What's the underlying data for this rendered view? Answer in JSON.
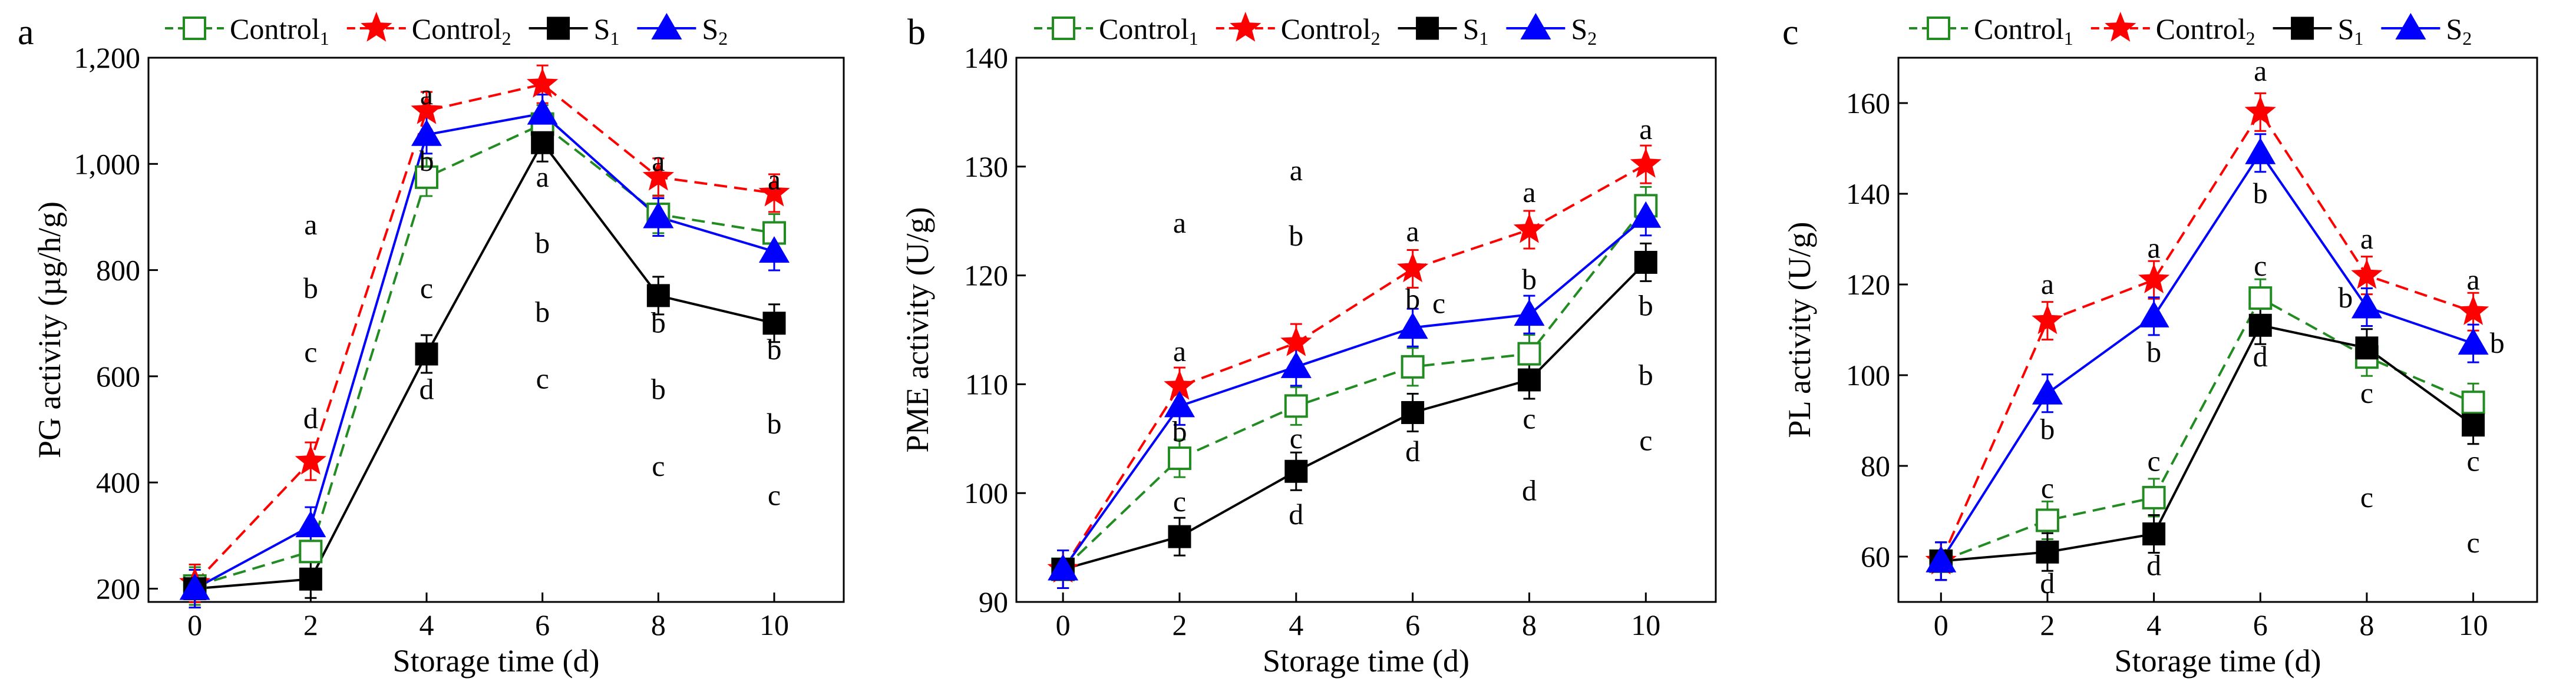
{
  "chart_data": [
    {
      "panel": "a",
      "type": "line",
      "ylabel": "PG activity (µg/h/g)",
      "xlabel": "Storage time (d)",
      "x": [
        0,
        2,
        4,
        6,
        8,
        10
      ],
      "xticks": [
        "0",
        "2",
        "4",
        "6",
        "8",
        "10"
      ],
      "ylim": [
        175,
        1200
      ],
      "yticks": [
        200,
        400,
        600,
        800,
        1000,
        1200
      ],
      "ytick_labels": [
        "200",
        "400",
        "600",
        "800",
        "1,000",
        "1,200"
      ],
      "series": [
        {
          "key": "c1",
          "name": "Control",
          "sub": "1",
          "values": [
            205,
            270,
            975,
            1075,
            905,
            870
          ]
        },
        {
          "key": "c2",
          "name": "Control",
          "sub": "2",
          "values": [
            210,
            440,
            1100,
            1150,
            975,
            945
          ]
        },
        {
          "key": "s1",
          "name": "S",
          "sub": "1",
          "values": [
            200,
            218,
            642,
            1040,
            752,
            700
          ]
        },
        {
          "key": "s2",
          "name": "S",
          "sub": "2",
          "values": [
            200,
            318,
            1055,
            1095,
            900,
            835
          ]
        }
      ],
      "annotations": [
        {
          "x": 2,
          "y": 885,
          "text": "a"
        },
        {
          "x": 2,
          "y": 765,
          "text": "b"
        },
        {
          "x": 2,
          "y": 645,
          "text": "c"
        },
        {
          "x": 2,
          "y": 520,
          "text": "d"
        },
        {
          "x": 4,
          "y": 1130,
          "text": "a"
        },
        {
          "x": 4,
          "y": 1005,
          "text": "b"
        },
        {
          "x": 4,
          "y": 765,
          "text": "c"
        },
        {
          "x": 4,
          "y": 575,
          "text": "d"
        },
        {
          "x": 6,
          "y": 975,
          "text": "a"
        },
        {
          "x": 6,
          "y": 850,
          "text": "b"
        },
        {
          "x": 6,
          "y": 720,
          "text": "b"
        },
        {
          "x": 6,
          "y": 595,
          "text": "c"
        },
        {
          "x": 8,
          "y": 1005,
          "text": "a"
        },
        {
          "x": 8,
          "y": 700,
          "text": "b"
        },
        {
          "x": 8,
          "y": 575,
          "text": "b"
        },
        {
          "x": 8,
          "y": 430,
          "text": "c"
        },
        {
          "x": 10,
          "y": 970,
          "text": "a"
        },
        {
          "x": 10,
          "y": 650,
          "text": "b"
        },
        {
          "x": 10,
          "y": 510,
          "text": "b"
        },
        {
          "x": 10,
          "y": 375,
          "text": "c"
        }
      ]
    },
    {
      "panel": "b",
      "type": "line",
      "ylabel": "PME activity (U/g)",
      "xlabel": "Storage time (d)",
      "x": [
        0,
        2,
        4,
        6,
        8,
        10
      ],
      "xticks": [
        "0",
        "2",
        "4",
        "6",
        "8",
        "10"
      ],
      "ylim": [
        90,
        140
      ],
      "yticks": [
        90,
        100,
        110,
        120,
        130,
        140
      ],
      "ytick_labels": [
        "90",
        "100",
        "110",
        "120",
        "130",
        "140"
      ],
      "series": [
        {
          "key": "c1",
          "name": "Control",
          "sub": "1",
          "values": [
            93.0,
            103.2,
            108.0,
            111.6,
            112.8,
            126.4
          ]
        },
        {
          "key": "c2",
          "name": "Control",
          "sub": "2",
          "values": [
            93.0,
            109.8,
            113.8,
            120.6,
            124.2,
            130.2
          ]
        },
        {
          "key": "s1",
          "name": "S",
          "sub": "1",
          "values": [
            93.0,
            96.0,
            102.0,
            107.4,
            110.4,
            121.2
          ]
        },
        {
          "key": "s2",
          "name": "S",
          "sub": "2",
          "values": [
            93.0,
            108.0,
            111.6,
            115.2,
            116.4,
            125.4
          ]
        }
      ],
      "annotations": [
        {
          "x": 2,
          "y": 124.8,
          "text": "a"
        },
        {
          "x": 2,
          "y": 113.0,
          "text": "a"
        },
        {
          "x": 2,
          "y": 105.6,
          "text": "b"
        },
        {
          "x": 2,
          "y": 99.2,
          "text": "c"
        },
        {
          "x": 4,
          "y": 129.6,
          "text": "a"
        },
        {
          "x": 4,
          "y": 123.6,
          "text": "b"
        },
        {
          "x": 4,
          "y": 105.0,
          "text": "c"
        },
        {
          "x": 4,
          "y": 98.0,
          "text": "d"
        },
        {
          "x": 6,
          "y": 124.0,
          "text": "a"
        },
        {
          "x": 6,
          "y": 117.8,
          "text": "b"
        },
        {
          "x": 6.45,
          "y": 117.4,
          "text": "c"
        },
        {
          "x": 6,
          "y": 103.8,
          "text": "d"
        },
        {
          "x": 8,
          "y": 127.6,
          "text": "a"
        },
        {
          "x": 8,
          "y": 119.6,
          "text": "b"
        },
        {
          "x": 8,
          "y": 106.8,
          "text": "c"
        },
        {
          "x": 8,
          "y": 100.2,
          "text": "d"
        },
        {
          "x": 10,
          "y": 133.4,
          "text": "a"
        },
        {
          "x": 10,
          "y": 117.2,
          "text": "b"
        },
        {
          "x": 10,
          "y": 110.8,
          "text": "b"
        },
        {
          "x": 10,
          "y": 104.8,
          "text": "c"
        }
      ]
    },
    {
      "panel": "c",
      "type": "line",
      "ylabel": "PL activity (U/g)",
      "xlabel": "Storage time (d)",
      "x": [
        0,
        2,
        4,
        6,
        8,
        10
      ],
      "xticks": [
        "0",
        "2",
        "4",
        "6",
        "8",
        "10"
      ],
      "ylim": [
        50,
        170
      ],
      "yticks": [
        60,
        80,
        100,
        120,
        140,
        160
      ],
      "ytick_labels": [
        "60",
        "80",
        "100",
        "120",
        "140",
        "160"
      ],
      "series": [
        {
          "key": "c1",
          "name": "Control",
          "sub": "1",
          "values": [
            59,
            68,
            73,
            117,
            104,
            94
          ]
        },
        {
          "key": "c2",
          "name": "Control",
          "sub": "2",
          "values": [
            59,
            112,
            121,
            158,
            122,
            114
          ]
        },
        {
          "key": "s1",
          "name": "S",
          "sub": "1",
          "values": [
            59,
            61,
            65,
            111,
            106,
            89
          ]
        },
        {
          "key": "s2",
          "name": "S",
          "sub": "2",
          "values": [
            59,
            96,
            113,
            149,
            115,
            107
          ]
        }
      ],
      "annotations": [
        {
          "x": 2,
          "y": 120,
          "text": "a"
        },
        {
          "x": 2,
          "y": 88,
          "text": "b"
        },
        {
          "x": 2,
          "y": 75,
          "text": "c"
        },
        {
          "x": 2,
          "y": 54,
          "text": "d"
        },
        {
          "x": 4,
          "y": 128,
          "text": "a"
        },
        {
          "x": 4,
          "y": 105,
          "text": "b"
        },
        {
          "x": 4,
          "y": 81,
          "text": "c"
        },
        {
          "x": 4,
          "y": 58,
          "text": "d"
        },
        {
          "x": 6,
          "y": 167,
          "text": "a"
        },
        {
          "x": 6,
          "y": 140,
          "text": "b"
        },
        {
          "x": 6,
          "y": 124,
          "text": "c"
        },
        {
          "x": 6,
          "y": 104,
          "text": "d"
        },
        {
          "x": 8,
          "y": 130,
          "text": "a"
        },
        {
          "x": 7.6,
          "y": 117,
          "text": "b"
        },
        {
          "x": 8,
          "y": 96,
          "text": "c"
        },
        {
          "x": 8,
          "y": 73,
          "text": "c"
        },
        {
          "x": 10,
          "y": 121,
          "text": "a"
        },
        {
          "x": 10.45,
          "y": 107,
          "text": "b"
        },
        {
          "x": 10,
          "y": 81,
          "text": "c"
        },
        {
          "x": 10,
          "y": 63,
          "text": "c"
        }
      ]
    }
  ],
  "series_style": {
    "c1": {
      "color": "#228B22",
      "marker": "square-open",
      "dash": "dashed"
    },
    "c2": {
      "color": "#FF0000",
      "marker": "star",
      "dash": "dashed"
    },
    "s1": {
      "color": "#000000",
      "marker": "square",
      "dash": "solid"
    },
    "s2": {
      "color": "#0000FF",
      "marker": "triangle",
      "dash": "solid"
    }
  }
}
